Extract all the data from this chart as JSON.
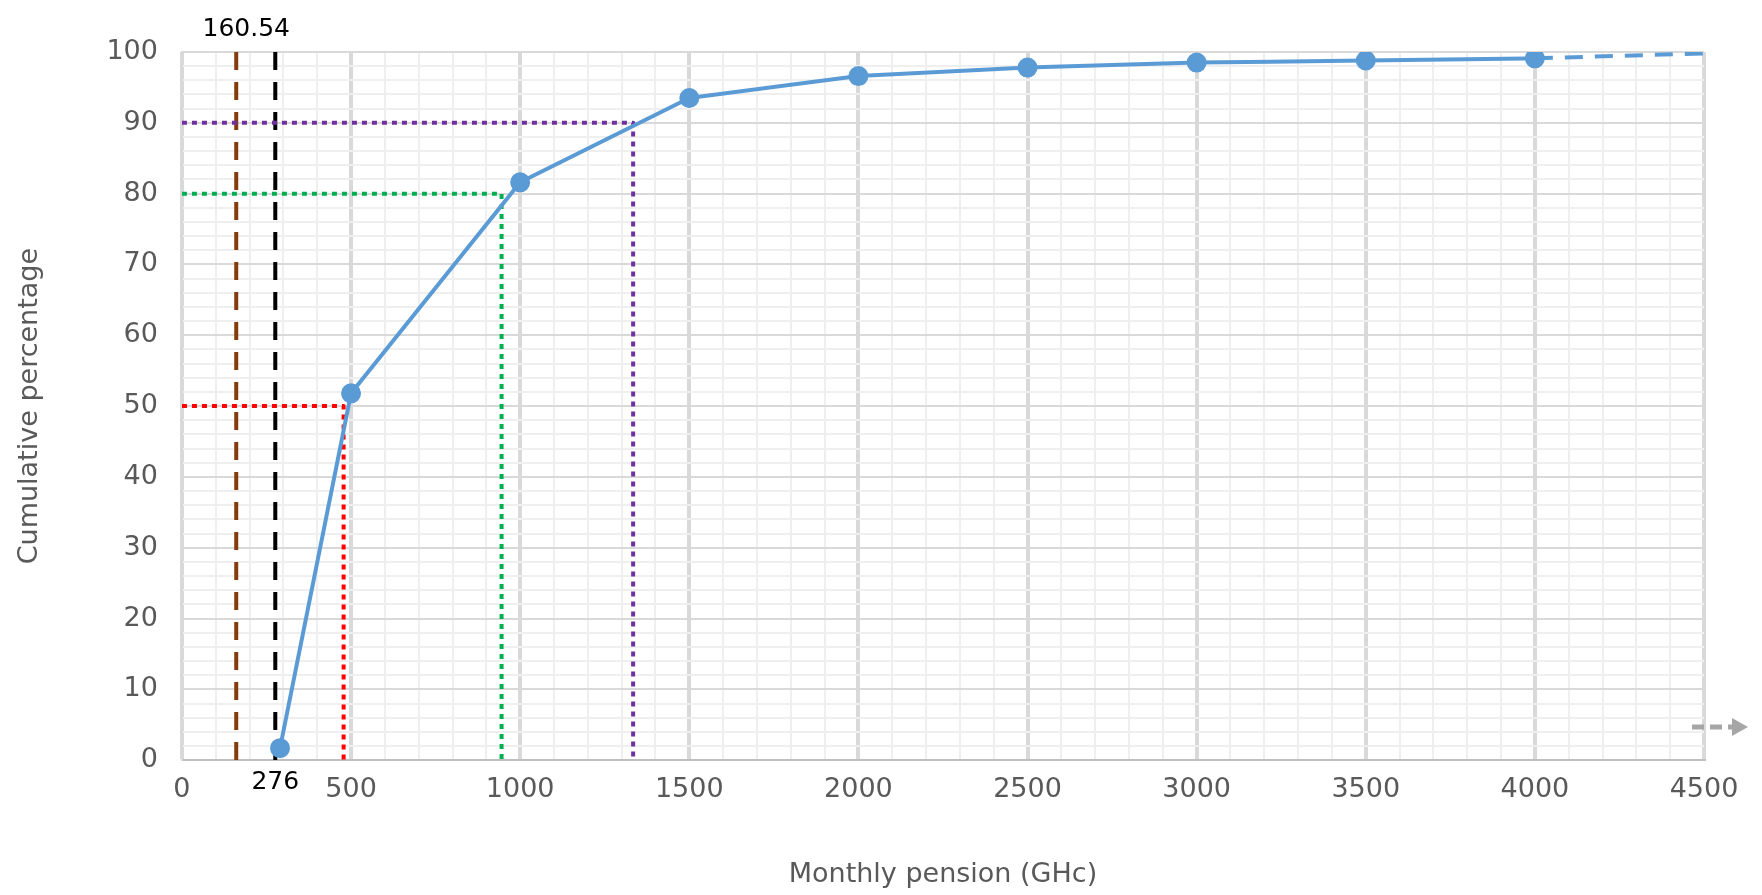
{
  "chart_data": {
    "type": "line",
    "xlabel": "Monthly pension (GHc)",
    "ylabel": "Cumulative percentage",
    "xlim": [
      0,
      4500
    ],
    "ylim": [
      0,
      100
    ],
    "xticks": [
      0,
      {
        "value": 100,
        "label": null
      },
      {
        "value": 200,
        "label": null
      },
      {
        "value": 300,
        "label": null
      },
      {
        "value": 400,
        "label": null
      },
      500,
      {
        "value": 600,
        "label": null
      },
      {
        "value": 700,
        "label": null
      },
      {
        "value": 800,
        "label": null
      },
      {
        "value": 900,
        "label": null
      },
      1000,
      {
        "value": 1100,
        "label": null
      },
      {
        "value": 1200,
        "label": null
      },
      {
        "value": 1300,
        "label": null
      },
      {
        "value": 1400,
        "label": null
      },
      1500,
      {
        "value": 1600,
        "label": null
      },
      {
        "value": 1700,
        "label": null
      },
      {
        "value": 1800,
        "label": null
      },
      {
        "value": 1900,
        "label": null
      },
      2000,
      {
        "value": 2100,
        "label": null
      },
      {
        "value": 2200,
        "label": null
      },
      {
        "value": 2300,
        "label": null
      },
      {
        "value": 2400,
        "label": null
      },
      2500,
      {
        "value": 2600,
        "label": null
      },
      {
        "value": 2700,
        "label": null
      },
      {
        "value": 2800,
        "label": null
      },
      {
        "value": 2900,
        "label": null
      },
      3000,
      {
        "value": 3100,
        "label": null
      },
      {
        "value": 3200,
        "label": null
      },
      {
        "value": 3300,
        "label": null
      },
      {
        "value": 3400,
        "label": null
      },
      3500,
      {
        "value": 3600,
        "label": null
      },
      {
        "value": 3700,
        "label": null
      },
      {
        "value": 3800,
        "label": null
      },
      {
        "value": 3900,
        "label": null
      },
      4000,
      {
        "value": 4100,
        "label": null
      },
      {
        "value": 4200,
        "label": null
      },
      {
        "value": 4300,
        "label": null
      },
      {
        "value": 4400,
        "label": null
      },
      4500
    ],
    "yticks": [
      0,
      {
        "value": 2,
        "label": null
      },
      {
        "value": 4,
        "label": null
      },
      {
        "value": 6,
        "label": null
      },
      {
        "value": 8,
        "label": null
      },
      10,
      {
        "value": 12,
        "label": null
      },
      {
        "value": 14,
        "label": null
      },
      {
        "value": 16,
        "label": null
      },
      {
        "value": 18,
        "label": null
      },
      20,
      {
        "value": 22,
        "label": null
      },
      {
        "value": 24,
        "label": null
      },
      {
        "value": 26,
        "label": null
      },
      {
        "value": 28,
        "label": null
      },
      30,
      {
        "value": 32,
        "label": null
      },
      {
        "value": 34,
        "label": null
      },
      {
        "value": 36,
        "label": null
      },
      {
        "value": 38,
        "label": null
      },
      40,
      {
        "value": 42,
        "label": null
      },
      {
        "value": 44,
        "label": null
      },
      {
        "value": 46,
        "label": null
      },
      {
        "value": 48,
        "label": null
      },
      50,
      {
        "value": 52,
        "label": null
      },
      {
        "value": 54,
        "label": null
      },
      {
        "value": 56,
        "label": null
      },
      {
        "value": 58,
        "label": null
      },
      60,
      {
        "value": 62,
        "label": null
      },
      {
        "value": 64,
        "label": null
      },
      {
        "value": 66,
        "label": null
      },
      {
        "value": 68,
        "label": null
      },
      70,
      {
        "value": 72,
        "label": null
      },
      {
        "value": 74,
        "label": null
      },
      {
        "value": 76,
        "label": null
      },
      {
        "value": 78,
        "label": null
      },
      80,
      {
        "value": 82,
        "label": null
      },
      {
        "value": 84,
        "label": null
      },
      {
        "value": 86,
        "label": null
      },
      {
        "value": 88,
        "label": null
      },
      90,
      {
        "value": 92,
        "label": null
      },
      {
        "value": 94,
        "label": null
      },
      {
        "value": 96,
        "label": null
      },
      {
        "value": 98,
        "label": null
      },
      100
    ],
    "grid": true,
    "series": [
      {
        "color": "#5b9bd5",
        "x": [
          290,
          500,
          1000,
          1500,
          2000,
          2500,
          3000,
          3500,
          4000
        ],
        "values": [
          1.7,
          51.8,
          81.6,
          93.5,
          96.6,
          97.8,
          98.5,
          98.8,
          99.1
        ],
        "marker": "circle",
        "line_style": "solid"
      },
      {
        "color": "#5b9bd5",
        "x": [
          4000,
          4500
        ],
        "values": [
          99.1,
          99.8
        ],
        "marker": "none",
        "line_style": "dashed"
      },
      {
        "color": "#ff0000",
        "x": [
          0,
          478,
          478
        ],
        "values": [
          50,
          50,
          0
        ],
        "marker": "none",
        "line_style": "dotted"
      },
      {
        "color": "#00b050",
        "x": [
          0,
          945,
          945
        ],
        "values": [
          80,
          80,
          0
        ],
        "marker": "none",
        "line_style": "dotted"
      },
      {
        "color": "#7030a0",
        "x": [
          0,
          1334,
          1334
        ],
        "values": [
          90,
          90,
          0
        ],
        "marker": "none",
        "line_style": "dotted"
      }
    ],
    "ref_lines": [
      {
        "axis": "x",
        "value": 160.54,
        "label": "160.54",
        "color": "#843c0c",
        "line_style": "dashed"
      },
      {
        "axis": "x",
        "value": 276,
        "label": "276",
        "color": "#000000",
        "line_style": "dashed"
      }
    ]
  }
}
